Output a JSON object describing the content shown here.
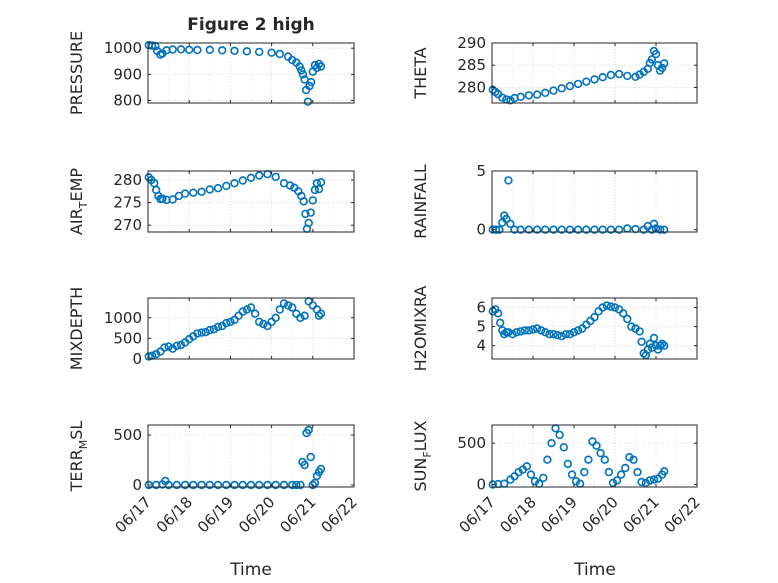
{
  "title": "Figure 2 high",
  "xlabel": "Time",
  "x_ticks": [
    "06/17",
    "06/18",
    "06/19",
    "06/20",
    "06/21",
    "06/22"
  ],
  "colors": {
    "marker": "#0072bd",
    "axis": "#262626",
    "grid": "#dcdcdc"
  },
  "chart_data": [
    {
      "type": "scatter",
      "ylabel": "PRESSURE",
      "ylim": [
        790,
        1020
      ],
      "yticks": [
        800,
        900,
        1000
      ],
      "xlim": [
        0,
        5
      ],
      "grid": true,
      "series": [
        {
          "x": [
            0.02,
            0.1,
            0.18,
            0.22,
            0.3,
            0.35,
            0.45,
            0.6,
            0.8,
            1.0,
            1.2,
            1.5,
            1.8,
            2.1,
            2.4,
            2.7,
            3.0,
            3.2,
            3.4,
            3.5,
            3.6,
            3.68,
            3.72,
            3.76,
            3.8,
            3.84,
            3.88,
            3.92,
            3.96,
            4.0,
            4.05,
            4.1,
            4.15,
            4.2
          ],
          "y": [
            1012,
            1010,
            1008,
            990,
            975,
            980,
            992,
            995,
            996,
            994,
            993,
            994,
            992,
            990,
            988,
            986,
            983,
            978,
            968,
            955,
            945,
            930,
            915,
            900,
            880,
            840,
            795,
            855,
            870,
            910,
            935,
            925,
            940,
            930
          ]
        }
      ]
    },
    {
      "type": "scatter",
      "ylabel": "THETA",
      "ylim": [
        276.5,
        290
      ],
      "yticks": [
        280,
        285,
        290
      ],
      "xlim": [
        0,
        5
      ],
      "grid": true,
      "series": [
        {
          "x": [
            0.02,
            0.08,
            0.15,
            0.25,
            0.35,
            0.45,
            0.55,
            0.7,
            0.9,
            1.1,
            1.3,
            1.5,
            1.7,
            1.9,
            2.1,
            2.3,
            2.5,
            2.7,
            2.9,
            3.1,
            3.3,
            3.5,
            3.6,
            3.7,
            3.8,
            3.85,
            3.9,
            3.95,
            4.0,
            4.05,
            4.1,
            4.15,
            4.2
          ],
          "y": [
            279.5,
            279,
            278.5,
            277.7,
            277.3,
            277.1,
            277.6,
            277.9,
            278.2,
            278.4,
            278.8,
            279.3,
            279.8,
            280.3,
            280.8,
            281.3,
            281.8,
            282.3,
            282.8,
            283.0,
            282.6,
            282.4,
            282.9,
            283.5,
            284.2,
            285.5,
            286.3,
            288.2,
            287.5,
            285.0,
            283.8,
            284.4,
            285.4
          ]
        }
      ]
    },
    {
      "type": "scatter",
      "ylabel": "AIR_TEMP",
      "ylim": [
        268.5,
        282
      ],
      "yticks": [
        270,
        275,
        280
      ],
      "xlim": [
        0,
        5
      ],
      "grid": true,
      "series": [
        {
          "x": [
            0.02,
            0.08,
            0.15,
            0.2,
            0.25,
            0.3,
            0.35,
            0.45,
            0.6,
            0.75,
            0.9,
            1.1,
            1.3,
            1.5,
            1.7,
            1.9,
            2.1,
            2.3,
            2.5,
            2.7,
            2.9,
            3.1,
            3.3,
            3.45,
            3.55,
            3.65,
            3.72,
            3.78,
            3.82,
            3.86,
            3.9,
            3.95,
            4.0,
            4.05,
            4.1,
            4.15,
            4.2
          ],
          "y": [
            280.6,
            280,
            279.3,
            277.8,
            276.5,
            275.8,
            275.9,
            275.6,
            275.7,
            276.5,
            277,
            277.2,
            277.4,
            277.9,
            278.2,
            278.7,
            279.3,
            279.9,
            280.5,
            281.0,
            281.3,
            280.7,
            279.3,
            278.8,
            278.3,
            277.5,
            276.5,
            275.3,
            272.5,
            269.2,
            270.5,
            272.8,
            275.5,
            277.8,
            279.3,
            278.0,
            279.5
          ]
        }
      ]
    },
    {
      "type": "scatter",
      "ylabel": "RAINFALL",
      "ylim": [
        -0.2,
        5
      ],
      "yticks": [
        0,
        5
      ],
      "xlim": [
        0,
        5
      ],
      "grid": true,
      "series": [
        {
          "x": [
            0.02,
            0.1,
            0.18,
            0.25,
            0.3,
            0.35,
            0.4,
            0.45,
            0.55,
            0.7,
            0.9,
            1.1,
            1.3,
            1.5,
            1.7,
            1.9,
            2.1,
            2.3,
            2.5,
            2.7,
            2.9,
            3.1,
            3.3,
            3.5,
            3.7,
            3.8,
            3.9,
            3.95,
            4.0,
            4.1,
            4.2
          ],
          "y": [
            0,
            0,
            0,
            0.6,
            1.2,
            0.9,
            4.2,
            0.5,
            0,
            0,
            0,
            0,
            0,
            0,
            0,
            0,
            0,
            0,
            0,
            0,
            0,
            0,
            0.1,
            0.05,
            0,
            0.3,
            0,
            0.5,
            0.1,
            0,
            0
          ]
        }
      ]
    },
    {
      "type": "scatter",
      "ylabel": "MIXDEPTH",
      "ylim": [
        0,
        1480
      ],
      "yticks": [
        0,
        500,
        1000
      ],
      "xlim": [
        0,
        5
      ],
      "grid": true,
      "series": [
        {
          "x": [
            0.02,
            0.1,
            0.2,
            0.3,
            0.4,
            0.5,
            0.6,
            0.7,
            0.8,
            0.9,
            1.0,
            1.1,
            1.2,
            1.3,
            1.4,
            1.5,
            1.6,
            1.7,
            1.8,
            1.9,
            2.0,
            2.1,
            2.2,
            2.3,
            2.4,
            2.5,
            2.6,
            2.7,
            2.8,
            2.9,
            3.0,
            3.1,
            3.2,
            3.3,
            3.4,
            3.5,
            3.6,
            3.7,
            3.8,
            3.9,
            4.0,
            4.1,
            4.15,
            4.2
          ],
          "y": [
            60,
            80,
            120,
            180,
            280,
            300,
            250,
            320,
            340,
            400,
            480,
            550,
            620,
            640,
            650,
            700,
            720,
            780,
            800,
            870,
            900,
            950,
            1050,
            1150,
            1200,
            1250,
            1100,
            900,
            850,
            800,
            900,
            1000,
            1200,
            1350,
            1300,
            1250,
            1100,
            1000,
            1050,
            1400,
            1300,
            1200,
            1050,
            1100
          ]
        }
      ]
    },
    {
      "type": "scatter",
      "ylabel": "H2OMIXRA",
      "ylim": [
        3.3,
        6.5
      ],
      "yticks": [
        4,
        5,
        6
      ],
      "xlim": [
        0,
        5
      ],
      "grid": true,
      "series": [
        {
          "x": [
            0.02,
            0.08,
            0.15,
            0.2,
            0.25,
            0.3,
            0.35,
            0.4,
            0.5,
            0.6,
            0.7,
            0.8,
            0.9,
            1.0,
            1.1,
            1.2,
            1.3,
            1.4,
            1.5,
            1.6,
            1.7,
            1.8,
            1.9,
            2.0,
            2.1,
            2.2,
            2.3,
            2.4,
            2.5,
            2.6,
            2.7,
            2.8,
            2.9,
            3.0,
            3.1,
            3.2,
            3.3,
            3.4,
            3.5,
            3.6,
            3.65,
            3.7,
            3.75,
            3.8,
            3.85,
            3.9,
            3.95,
            4.0,
            4.05,
            4.1,
            4.15,
            4.2
          ],
          "y": [
            5.8,
            5.9,
            5.7,
            5.2,
            4.8,
            4.6,
            4.7,
            4.7,
            4.6,
            4.7,
            4.75,
            4.8,
            4.8,
            4.85,
            4.9,
            4.8,
            4.7,
            4.6,
            4.6,
            4.55,
            4.5,
            4.6,
            4.6,
            4.7,
            4.8,
            4.9,
            5.1,
            5.3,
            5.5,
            5.8,
            6.0,
            6.1,
            6.05,
            6.0,
            5.9,
            5.7,
            5.4,
            5.0,
            4.9,
            4.75,
            4.2,
            3.6,
            3.5,
            3.8,
            4.1,
            3.9,
            4.4,
            4.0,
            3.8,
            4.0,
            4.1,
            4.0
          ]
        }
      ]
    },
    {
      "type": "scatter",
      "ylabel": "TERR_MSL",
      "ylim": [
        -20,
        600
      ],
      "yticks": [
        0,
        500
      ],
      "xlim": [
        0,
        5
      ],
      "grid": true,
      "series": [
        {
          "x": [
            0.02,
            0.2,
            0.35,
            0.42,
            0.5,
            0.7,
            0.9,
            1.1,
            1.3,
            1.5,
            1.7,
            1.9,
            2.1,
            2.3,
            2.5,
            2.7,
            2.9,
            3.1,
            3.3,
            3.5,
            3.6,
            3.7,
            3.75,
            3.8,
            3.85,
            3.9,
            3.95,
            4.0,
            4.05,
            4.1,
            4.15,
            4.2
          ],
          "y": [
            0,
            0,
            5,
            40,
            0,
            0,
            0,
            0,
            0,
            0,
            0,
            0,
            0,
            0,
            0,
            0,
            0,
            0,
            0,
            0,
            0,
            0,
            230,
            200,
            520,
            550,
            280,
            0,
            20,
            90,
            130,
            160
          ]
        }
      ]
    },
    {
      "type": "scatter",
      "ylabel": "SUN_FLUX",
      "ylim": [
        -30,
        720
      ],
      "yticks": [
        0,
        500
      ],
      "xlim": [
        0,
        5
      ],
      "grid": true,
      "series": [
        {
          "x": [
            0.02,
            0.15,
            0.3,
            0.45,
            0.55,
            0.65,
            0.75,
            0.85,
            0.95,
            1.05,
            1.15,
            1.25,
            1.35,
            1.45,
            1.55,
            1.65,
            1.75,
            1.85,
            1.95,
            2.05,
            2.15,
            2.25,
            2.35,
            2.45,
            2.55,
            2.65,
            2.75,
            2.85,
            2.95,
            3.05,
            3.15,
            3.25,
            3.35,
            3.45,
            3.55,
            3.65,
            3.75,
            3.85,
            3.95,
            4.05,
            4.15,
            4.2
          ],
          "y": [
            0,
            5,
            10,
            60,
            100,
            150,
            180,
            220,
            120,
            40,
            10,
            80,
            300,
            500,
            680,
            600,
            450,
            250,
            120,
            40,
            10,
            150,
            300,
            520,
            470,
            380,
            300,
            150,
            20,
            50,
            120,
            200,
            330,
            300,
            150,
            30,
            20,
            50,
            60,
            70,
            120,
            160
          ]
        }
      ]
    }
  ]
}
